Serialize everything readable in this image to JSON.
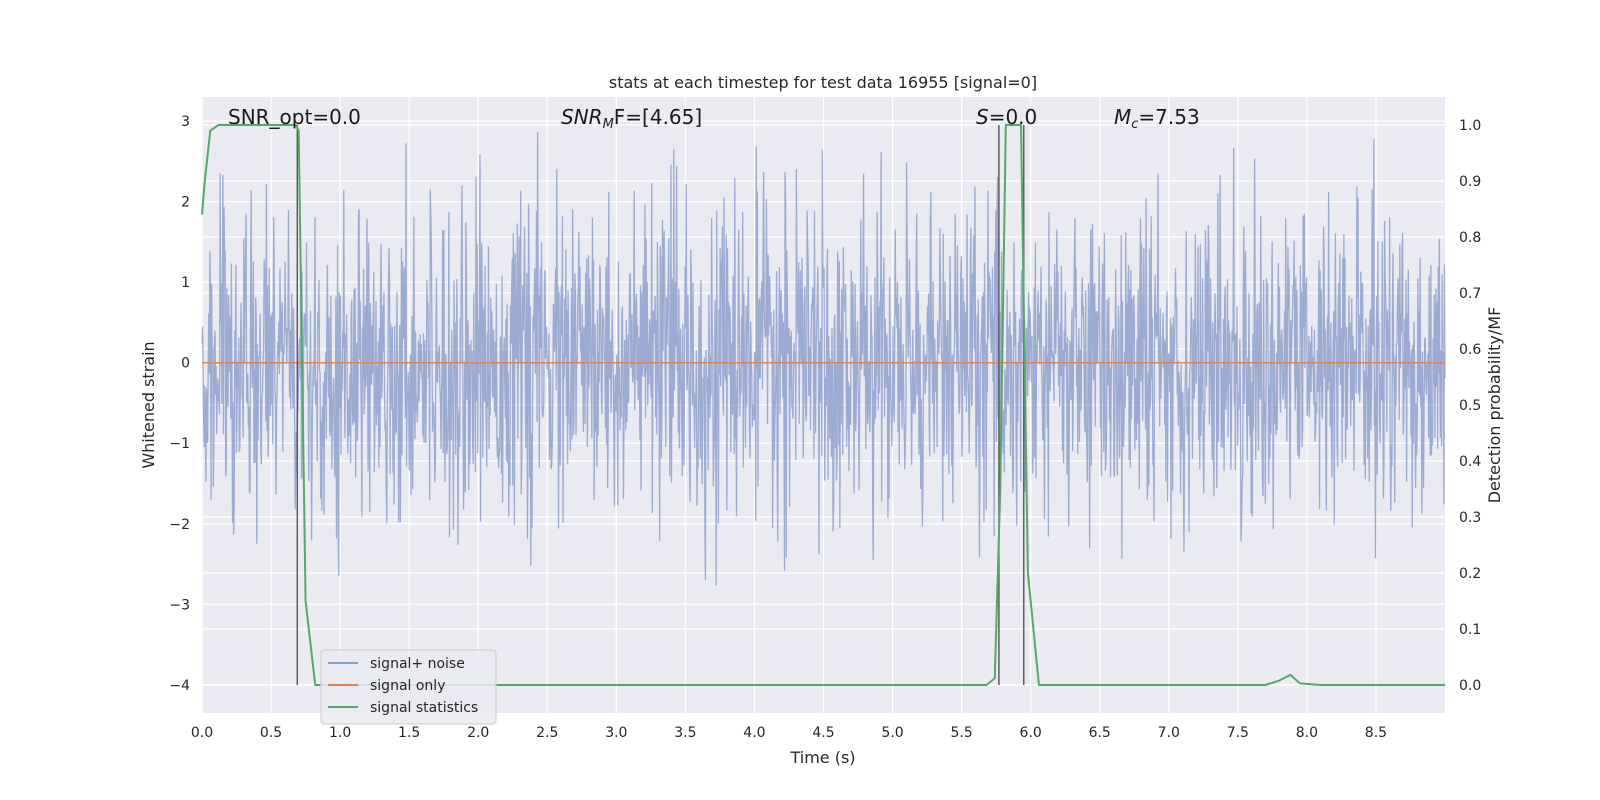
{
  "chart_data": {
    "type": "line",
    "title": "stats at each timestep for test data 16955 [signal=0]",
    "xlabel": "Time (s)",
    "ylabel": "Whitened strain",
    "y2label": "Detection probability/MF",
    "xlim": [
      0.0,
      9.0
    ],
    "ylim": [
      -4.35,
      3.3
    ],
    "y2lim": [
      -0.05,
      1.05
    ],
    "xticks": [
      "0.0",
      "0.5",
      "1.0",
      "1.5",
      "2.0",
      "2.5",
      "3.0",
      "3.5",
      "4.0",
      "4.5",
      "5.0",
      "5.5",
      "6.0",
      "6.5",
      "7.0",
      "7.5",
      "8.0",
      "8.5"
    ],
    "yticks": [
      "3",
      "2",
      "1",
      "0",
      "−1",
      "−2",
      "−3",
      "−4"
    ],
    "y2ticks": [
      "1.0",
      "0.9",
      "0.8",
      "0.7",
      "0.6",
      "0.5",
      "0.4",
      "0.3",
      "0.2",
      "0.1",
      "0.0"
    ],
    "grid": true,
    "legend_position": "lower-left",
    "annotations": {
      "snr_opt": "SNR_opt=0.0",
      "snr_mf_prefix": "SNR",
      "snr_mf_sub": "M",
      "snr_mf_rest": "F=[4.65]",
      "s_prefix": "S",
      "s_rest": "=0.0",
      "mc_prefix": "M",
      "mc_sub": "c",
      "mc_rest": "=7.53"
    },
    "series": [
      {
        "name": "signal+ noise",
        "color": "#8da0cb",
        "axis": "left",
        "description_amplitude_envelope": [
          -3.0,
          3.0
        ]
      },
      {
        "name": "signal only",
        "color": "#dd8452",
        "axis": "left",
        "x": [
          0.0,
          9.0
        ],
        "y": [
          0.0,
          0.0
        ]
      },
      {
        "name": "signal statistics",
        "color": "#55a868",
        "axis": "right",
        "x": [
          0.0,
          0.02,
          0.06,
          0.12,
          0.2,
          0.68,
          0.7,
          0.75,
          0.82,
          1.0,
          2.0,
          3.0,
          4.0,
          5.0,
          5.68,
          5.74,
          5.78,
          5.82,
          5.93,
          5.98,
          6.06,
          6.2,
          7.0,
          7.7,
          7.8,
          7.88,
          7.95,
          8.1,
          8.5,
          9.0
        ],
        "y": [
          0.84,
          0.9,
          0.99,
          1.0,
          1.0,
          1.0,
          0.99,
          0.15,
          0.0,
          0.0,
          0.0,
          0.0,
          0.0,
          0.0,
          0.0,
          0.012,
          0.35,
          1.0,
          1.0,
          0.2,
          0.0,
          0.0,
          0.0,
          0.0,
          0.008,
          0.018,
          0.003,
          0.0,
          0.0,
          0.0
        ]
      }
    ],
    "vertical_lines_x": [
      0.69,
      5.77,
      5.95
    ]
  }
}
